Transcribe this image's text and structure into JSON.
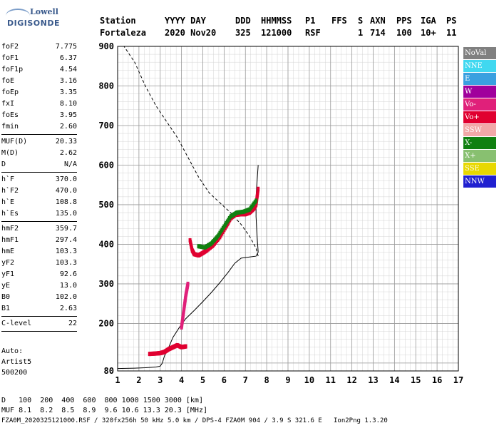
{
  "logo": {
    "line1": "Lowell",
    "line2": "DIGISONDE"
  },
  "header": {
    "station_label": "Station",
    "station_value": "Fortaleza",
    "date_label": "YYYY DAY",
    "date_value": "2020 Nov20",
    "ddd_label": "DDD",
    "ddd_value": "325",
    "time_label": "HHMMSS",
    "time_value": "121000",
    "p1_label": "P1",
    "p1_value": "RSF",
    "ffs_label": "FFS",
    "ffs_value": "",
    "s_label": "S",
    "s_value": "1",
    "axn_label": "AXN",
    "axn_value": "714",
    "pps_label": "PPS",
    "pps_value": "100",
    "iga_label": "IGA",
    "iga_value": "10+",
    "ps_label": "PS",
    "ps_value": "11"
  },
  "params": {
    "group1": [
      {
        "k": "foF2",
        "v": "7.775"
      },
      {
        "k": "foF1",
        "v": "6.37"
      },
      {
        "k": "foF1p",
        "v": "4.54"
      },
      {
        "k": "foE",
        "v": "3.16"
      },
      {
        "k": "foEp",
        "v": "3.35"
      },
      {
        "k": "fxI",
        "v": "8.10"
      },
      {
        "k": "foEs",
        "v": "3.95"
      },
      {
        "k": "fmin",
        "v": "2.60"
      }
    ],
    "group2": [
      {
        "k": "MUF(D)",
        "v": "20.33"
      },
      {
        "k": "M(D)",
        "v": "2.62"
      },
      {
        "k": "D",
        "v": "N/A"
      }
    ],
    "group3": [
      {
        "k": "h`F",
        "v": "370.0"
      },
      {
        "k": "h`F2",
        "v": "470.0"
      },
      {
        "k": "h`E",
        "v": "108.8"
      },
      {
        "k": "h`Es",
        "v": "135.0"
      }
    ],
    "group4": [
      {
        "k": "hmF2",
        "v": "359.7"
      },
      {
        "k": "hmF1",
        "v": "297.4"
      },
      {
        "k": "hmE",
        "v": "103.3"
      },
      {
        "k": "yF2",
        "v": "103.3"
      },
      {
        "k": "yF1",
        "v": "92.6"
      },
      {
        "k": "yE",
        "v": "13.0"
      },
      {
        "k": "B0",
        "v": "102.0"
      },
      {
        "k": "B1",
        "v": "2.63"
      }
    ],
    "group5": [
      {
        "k": "C-level",
        "v": "22"
      }
    ]
  },
  "auto": {
    "line1": "Auto:",
    "line2": "Artist5",
    "line3": "500200"
  },
  "legend": [
    {
      "label": "NoVal",
      "color": "#808080"
    },
    {
      "label": "NNE",
      "color": "#40d8f0"
    },
    {
      "label": "E",
      "color": "#3aa0e0"
    },
    {
      "label": "W",
      "color": "#a0009c"
    },
    {
      "label": "Vo-",
      "color": "#e0207a"
    },
    {
      "label": "Vo+",
      "color": "#e00030"
    },
    {
      "label": "SSW",
      "color": "#f2a8a8"
    },
    {
      "label": "X-",
      "color": "#108010"
    },
    {
      "label": "X+",
      "color": "#88c070"
    },
    {
      "label": "SSE",
      "color": "#e8d800"
    },
    {
      "label": "NNW",
      "color": "#2020d0"
    }
  ],
  "footer": {
    "line1_label": "D",
    "line1_values": "   100  200  400  600  800 1000 1500 3000 [km]",
    "line2_label": "MUF",
    "line2_values": " 8.1  8.2  8.5  8.9  9.6 10.6 13.3 20.3 [MHz]",
    "line3": "FZA0M_2020325121000.RSF / 320fx256h 50 kHz 5.0 km / DPS-4 FZA0M 904 / 3.9 S 321.6 E   Ion2Png 1.3.20"
  },
  "chart_data": {
    "type": "scatter",
    "title": "",
    "xlabel": "",
    "ylabel": "",
    "xlim": [
      1,
      17
    ],
    "ylim": [
      80,
      900
    ],
    "xticks": [
      "1",
      "2",
      "3",
      "4",
      "5",
      "6",
      "7",
      "8",
      "9",
      "10",
      "11",
      "12",
      "13",
      "14",
      "15",
      "16",
      "17"
    ],
    "yticks": [
      "80",
      "200",
      "300",
      "400",
      "500",
      "600",
      "700",
      "800",
      "900"
    ],
    "grid": true,
    "traces": [
      {
        "name": "E-layer echo",
        "color": "#e00030",
        "points": [
          [
            2.5,
            123
          ],
          [
            2.8,
            124
          ],
          [
            3.0,
            125
          ],
          [
            3.2,
            128
          ],
          [
            3.4,
            135
          ],
          [
            3.6,
            140
          ],
          [
            3.8,
            145
          ],
          [
            4.0,
            140
          ],
          [
            4.2,
            142
          ]
        ]
      },
      {
        "name": "Es echo",
        "color": "#e0207a",
        "points": [
          [
            4.0,
            190
          ],
          [
            4.05,
            210
          ],
          [
            4.1,
            230
          ],
          [
            4.15,
            250
          ],
          [
            4.2,
            270
          ],
          [
            4.25,
            285
          ],
          [
            4.3,
            300
          ]
        ]
      },
      {
        "name": "F1 echo",
        "color": "#e00030",
        "points": [
          [
            4.4,
            410
          ],
          [
            4.5,
            385
          ],
          [
            4.6,
            375
          ],
          [
            4.8,
            372
          ],
          [
            5.0,
            378
          ],
          [
            5.2,
            385
          ],
          [
            5.5,
            398
          ],
          [
            5.8,
            418
          ],
          [
            6.1,
            445
          ],
          [
            6.3,
            465
          ],
          [
            6.5,
            474
          ],
          [
            6.8,
            476
          ],
          [
            7.0,
            476
          ],
          [
            7.2,
            480
          ],
          [
            7.4,
            490
          ],
          [
            7.5,
            500
          ],
          [
            7.55,
            520
          ],
          [
            7.6,
            540
          ]
        ]
      },
      {
        "name": "F1 X echo",
        "color": "#108010",
        "points": [
          [
            4.8,
            395
          ],
          [
            5.1,
            392
          ],
          [
            5.4,
            402
          ],
          [
            5.7,
            420
          ],
          [
            6.0,
            445
          ],
          [
            6.3,
            470
          ],
          [
            6.6,
            480
          ],
          [
            6.9,
            482
          ],
          [
            7.2,
            488
          ],
          [
            7.5,
            510
          ]
        ]
      }
    ],
    "profile_line": [
      [
        1.0,
        86
      ],
      [
        1.8,
        87
      ],
      [
        2.3,
        88
      ],
      [
        2.8,
        90
      ],
      [
        3.0,
        92
      ],
      [
        3.1,
        100
      ],
      [
        3.2,
        118
      ],
      [
        3.4,
        140
      ],
      [
        3.6,
        165
      ],
      [
        3.9,
        190
      ],
      [
        4.2,
        212
      ],
      [
        4.6,
        233
      ],
      [
        5.0,
        255
      ],
      [
        5.4,
        278
      ],
      [
        5.8,
        303
      ],
      [
        6.2,
        330
      ],
      [
        6.5,
        352
      ],
      [
        6.8,
        365
      ],
      [
        7.2,
        368
      ],
      [
        7.5,
        370
      ],
      [
        7.6,
        380
      ],
      [
        7.55,
        420
      ],
      [
        7.5,
        470
      ],
      [
        7.5,
        520
      ],
      [
        7.55,
        560
      ],
      [
        7.6,
        600
      ]
    ],
    "model_line": [
      [
        1.0,
        900
      ],
      [
        1.3,
        900
      ],
      [
        1.8,
        860
      ],
      [
        2.3,
        800
      ],
      [
        2.8,
        750
      ],
      [
        3.3,
        710
      ],
      [
        3.8,
        670
      ],
      [
        4.3,
        620
      ],
      [
        4.8,
        570
      ],
      [
        5.3,
        530
      ],
      [
        5.8,
        505
      ],
      [
        6.3,
        480
      ],
      [
        6.8,
        450
      ],
      [
        7.2,
        420
      ],
      [
        7.5,
        390
      ],
      [
        7.6,
        370
      ]
    ]
  }
}
